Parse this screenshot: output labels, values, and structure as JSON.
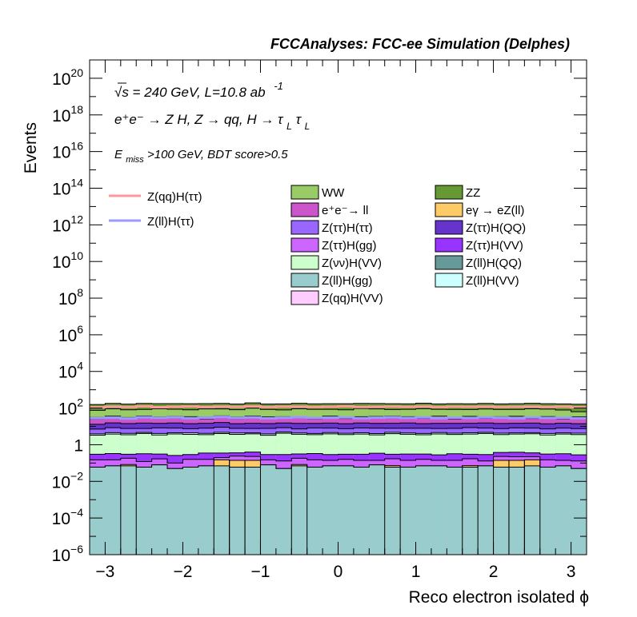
{
  "chart_data": {
    "type": "area",
    "title": "FCCAnalyses: FCC-ee Simulation (Delphes)",
    "xlabel": "Reco electron isolated ϕ",
    "ylabel": "Events",
    "yscale": "log",
    "xlim": [
      -3.2,
      3.2
    ],
    "ylim": [
      1e-06,
      1e+21
    ],
    "x_ticks": [
      -3,
      -2,
      -1,
      0,
      1,
      2,
      3
    ],
    "x_tick_labels": [
      "−3",
      "−2",
      "−1",
      "0",
      "1",
      "2",
      "3"
    ],
    "y_ticks": [
      {
        "base": "10",
        "exp": "−6",
        "value": 1e-06
      },
      {
        "base": "10",
        "exp": "−4",
        "value": 0.0001
      },
      {
        "base": "10",
        "exp": "−2",
        "value": 0.01
      },
      {
        "base": "1",
        "exp": "",
        "value": 1
      },
      {
        "base": "10",
        "exp": "2",
        "value": 100.0
      },
      {
        "base": "10",
        "exp": "4",
        "value": 10000.0
      },
      {
        "base": "10",
        "exp": "6",
        "value": 1000000.0
      },
      {
        "base": "10",
        "exp": "8",
        "value": 100000000.0
      },
      {
        "base": "10",
        "exp": "10",
        "value": 10000000000.0
      },
      {
        "base": "10",
        "exp": "12",
        "value": 1000000000000.0
      },
      {
        "base": "10",
        "exp": "14",
        "value": 100000000000000.0
      },
      {
        "base": "10",
        "exp": "16",
        "value": 1e+16
      },
      {
        "base": "10",
        "exp": "18",
        "value": 1e+18
      },
      {
        "base": "10",
        "exp": "20",
        "value": 1e+20
      }
    ],
    "annotations": {
      "line1": "√s = 240 GeV, L=10.8 ab",
      "line1_sup": "-1",
      "line2": "e⁺e⁻ → Z H, Z  → qq, H  → τ",
      "line2_sub": "L",
      "line2_tau": "τ",
      "line3_E": "E",
      "line3_sub": "miss",
      "line3_rest": ">100 GeV, BDT score>0.5"
    },
    "bin_edges": [
      -3.2,
      -3.0,
      -2.8,
      -2.6,
      -2.4,
      -2.2,
      -2.0,
      -1.8,
      -1.6,
      -1.4,
      -1.2,
      -1.0,
      -0.8,
      -0.6,
      -0.4,
      -0.2,
      0.0,
      0.2,
      0.4,
      0.6,
      0.8,
      1.0,
      1.2,
      1.4,
      1.6,
      1.8,
      2.0,
      2.2,
      2.4,
      2.6,
      2.8,
      3.0,
      3.2
    ],
    "stack": [
      {
        "name": "Z(ll)H(gg)",
        "color": "#99cccc",
        "values": [
          0.06,
          0.07,
          0.07,
          0.06,
          0.08,
          0.05,
          0.06,
          0.07,
          0.07,
          0.06,
          0.06,
          0.08,
          0.05,
          0.07,
          0.06,
          0.07,
          0.07,
          0.06,
          0.08,
          0.06,
          0.06,
          0.07,
          0.07,
          0.06,
          0.06,
          0.07,
          0.06,
          0.06,
          0.07,
          0.06,
          0.07,
          0.05
        ]
      },
      {
        "name": "eγ → eZ(ll)",
        "color": "#fecb66",
        "values": [
          0,
          0,
          0.0125,
          0,
          0,
          0,
          0,
          0,
          0.08,
          0.08,
          0.08,
          0,
          0,
          0.0125,
          0,
          0,
          0,
          0,
          0,
          0.0125,
          0,
          0,
          0,
          0,
          0.0125,
          0,
          0.08,
          0.08,
          0.08,
          0,
          0,
          0
        ]
      },
      {
        "name": "Z(ττ)H(gg)",
        "color": "#cc66ff",
        "values": [
          0.09,
          0.08,
          0.1,
          0.06,
          0.09,
          0.05,
          0.1,
          0.09,
          0.05,
          0.1,
          0.09,
          0.07,
          0.08,
          0.1,
          0.09,
          0.07,
          0.09,
          0.08,
          0.06,
          0.1,
          0.08,
          0.09,
          0.07,
          0.08,
          0.1,
          0.06,
          0.09,
          0.08,
          0.07,
          0.09,
          0.07,
          0.08
        ]
      },
      {
        "name": "Z(ττ)H(VV)",
        "color": "#9933ff",
        "values": [
          0.15,
          0.18,
          0.12,
          0.2,
          0.14,
          0.16,
          0.13,
          0.19,
          0.15,
          0.12,
          0.17,
          0.14,
          0.16,
          0.13,
          0.18,
          0.15,
          0.14,
          0.16,
          0.2,
          0.13,
          0.17,
          0.15,
          0.14,
          0.18,
          0.13,
          0.16,
          0.15,
          0.17,
          0.14,
          0.16,
          0.18,
          0.15
        ]
      },
      {
        "name": "Z(νν)H(VV)",
        "color": "#ccffcc",
        "values": [
          3.0,
          3.5,
          3.2,
          3.8,
          3.1,
          3.6,
          3.4,
          3.2,
          3.7,
          3.3,
          3.5,
          3.0,
          3.9,
          3.4,
          3.2,
          3.6,
          3.3,
          3.5,
          3.1,
          3.7,
          3.4,
          3.2,
          3.6,
          3.3,
          3.5,
          3.8,
          3.2,
          3.4,
          3.6,
          3.1,
          3.5,
          3.3
        ]
      },
      {
        "name": "Z(ll)H(VV)",
        "color": "#ccffff",
        "values": [
          0.6,
          0.7,
          0.65,
          0.55,
          0.7,
          0.6,
          0.75,
          0.6,
          0.65,
          0.7,
          0.55,
          0.6,
          0.7,
          0.65,
          0.6,
          0.7,
          0.62,
          0.68,
          0.6,
          0.7,
          0.65,
          0.6,
          0.7,
          0.62,
          0.66,
          0.6,
          0.7,
          0.64,
          0.6,
          0.7,
          0.62,
          0.66
        ]
      },
      {
        "name": "Z(ττ)H(ττ)",
        "color": "#9966ff",
        "values": [
          3.2,
          4.0,
          3.5,
          3.0,
          4.2,
          3.6,
          3.1,
          3.8,
          4.3,
          3.4,
          3.2,
          3.9,
          3.6,
          3.0,
          4.1,
          3.5,
          3.3,
          3.7,
          4.0,
          3.2,
          3.5,
          3.8,
          3.1,
          3.6,
          4.2,
          3.4,
          3.3,
          3.9,
          3.5,
          3.2,
          3.7,
          3.4
        ]
      },
      {
        "name": "Z(ττ)H(QQ)",
        "color": "#6633cc",
        "values": [
          6.0,
          7.0,
          6.5,
          7.5,
          6.2,
          7.2,
          6.6,
          6.9,
          7.4,
          6.3,
          7.1,
          6.5,
          6.8,
          7.3,
          6.4,
          7.0,
          6.6,
          7.2,
          6.5,
          6.9,
          7.4,
          6.3,
          7.0,
          6.7,
          6.2,
          7.3,
          6.8,
          6.5,
          7.1,
          6.6,
          6.9,
          6.4
        ]
      },
      {
        "name": "e⁺e⁻→ ll",
        "color": "#cc55cc",
        "values": [
          12,
          14,
          11,
          15,
          12,
          13,
          14,
          11,
          15,
          12,
          16,
          13,
          12,
          14,
          11,
          15,
          13,
          12,
          14,
          16,
          12,
          13,
          15,
          11,
          14,
          12,
          13,
          15,
          12,
          14,
          11,
          13
        ]
      },
      {
        "name": "Z(ll)H(QQ)",
        "color": "#669999",
        "values": [
          0.8,
          0.9,
          0.7,
          1.0,
          0.8,
          0.9,
          0.75,
          0.85,
          0.95,
          0.8,
          0.9,
          0.7,
          0.85,
          0.9,
          0.8,
          0.75,
          0.9,
          0.85,
          0.8,
          0.95,
          0.7,
          0.85,
          0.9,
          0.8,
          0.75,
          0.9,
          0.85,
          0.8,
          0.9,
          0.7,
          0.85,
          0.8
        ]
      },
      {
        "name": "Z(qq)H(VV)",
        "color": "#ffccff",
        "values": [
          5.0,
          5.5,
          4.8,
          6.0,
          5.2,
          5.4,
          4.9,
          5.8,
          5.1,
          5.6,
          5.0,
          5.3,
          5.7,
          4.9,
          5.5,
          5.2,
          5.0,
          5.6,
          5.3,
          4.8,
          5.9,
          5.1,
          5.4,
          5.0,
          5.7,
          5.2,
          5.5,
          4.9,
          5.3,
          5.6,
          5.0,
          5.4
        ]
      },
      {
        "name": "WW",
        "color": "#99cc66",
        "values": [
          45,
          55,
          50,
          48,
          60,
          52,
          47,
          58,
          53,
          49,
          62,
          51,
          46,
          57,
          54,
          50,
          48,
          61,
          55,
          47,
          52,
          59,
          50,
          53,
          48,
          56,
          51,
          49,
          58,
          54,
          47,
          30
        ]
      },
      {
        "name": "ZZ",
        "color": "#669933",
        "values": [
          80,
          90,
          85,
          95,
          82,
          88,
          92,
          84,
          90,
          86,
          94,
          83,
          89,
          91,
          85,
          87,
          93,
          84,
          88,
          90,
          86,
          92,
          83,
          89,
          87,
          91,
          85,
          88,
          90,
          84,
          89,
          100
        ]
      }
    ],
    "signal_lines": [
      {
        "name": "Z(qq)H(ττ)",
        "color": "#ff9999",
        "values": [
          110,
          120,
          115,
          125,
          112,
          118,
          122,
          114,
          120,
          116,
          124,
          113,
          119,
          121,
          115,
          117,
          123,
          114,
          118,
          120,
          116,
          122,
          113,
          119,
          117,
          121,
          115,
          118,
          120,
          114,
          119,
          110
        ]
      },
      {
        "name": "Z(ll)H(ττ)",
        "color": "#9999ff",
        "values": [
          28,
          30,
          27,
          32,
          29,
          31,
          28,
          30,
          33,
          29,
          31,
          28,
          30,
          32,
          29,
          30,
          31,
          28,
          30,
          32,
          29,
          31,
          28,
          30,
          29,
          31,
          30,
          28,
          31,
          29,
          30,
          28
        ]
      }
    ],
    "legend_left": [
      {
        "label": "Z(qq)H(ττ)",
        "color": "#ff9999"
      },
      {
        "label": "Z(ll)H(ττ)",
        "color": "#9999ff"
      }
    ],
    "legend_right": [
      {
        "label": "WW",
        "color": "#99cc66"
      },
      {
        "label": "ZZ",
        "color": "#669933"
      },
      {
        "label": "e⁺e⁻→ ll",
        "color": "#cc55cc"
      },
      {
        "label": "eγ → eZ(ll)",
        "color": "#fecb66"
      },
      {
        "label": "Z(ττ)H(ττ)",
        "color": "#9966ff"
      },
      {
        "label": "Z(ττ)H(QQ)",
        "color": "#6633cc"
      },
      {
        "label": "Z(ττ)H(gg)",
        "color": "#cc66ff"
      },
      {
        "label": "Z(ττ)H(VV)",
        "color": "#9933ff"
      },
      {
        "label": "Z(νν)H(VV)",
        "color": "#ccffcc"
      },
      {
        "label": "Z(ll)H(QQ)",
        "color": "#669999"
      },
      {
        "label": "Z(ll)H(gg)",
        "color": "#99cccc"
      },
      {
        "label": "Z(ll)H(VV)",
        "color": "#ccffff"
      },
      {
        "label": "Z(qq)H(VV)",
        "color": "#ffccff"
      }
    ],
    "legend_placement": "top",
    "grid": false
  }
}
